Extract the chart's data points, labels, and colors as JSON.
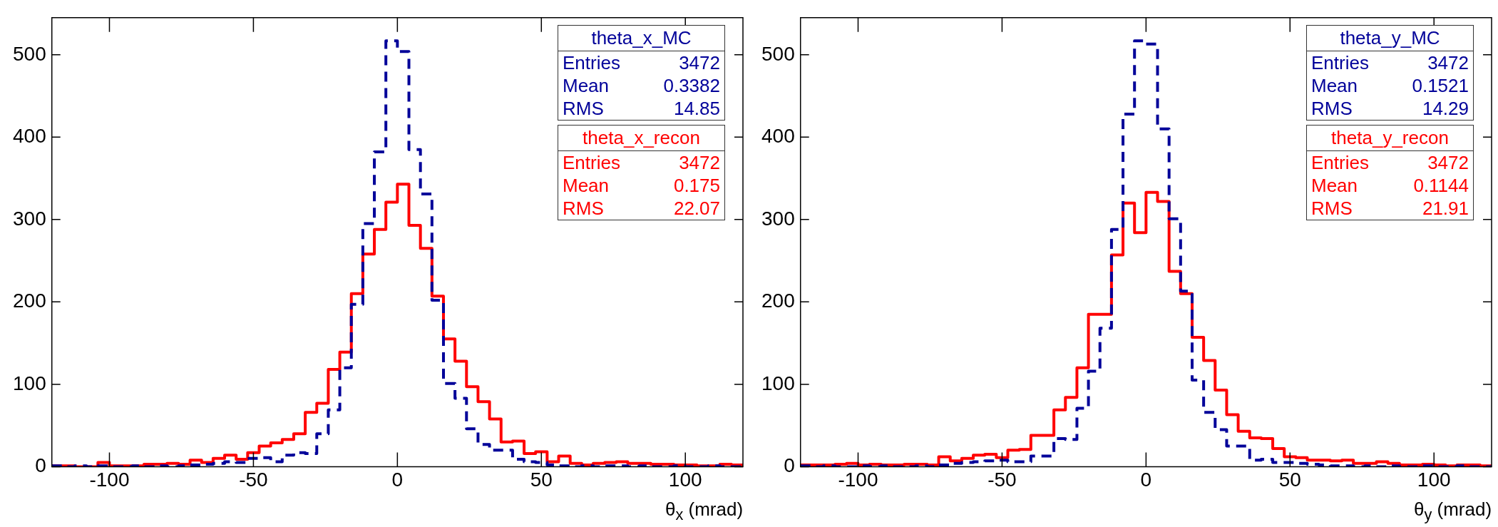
{
  "chart_data": [
    {
      "type": "histogram",
      "xlabel": "θ$_{x}$ (mrad)",
      "xlim": [
        -120,
        120
      ],
      "xticks": [
        -100,
        -50,
        0,
        50,
        100
      ],
      "ylim": [
        0,
        545
      ],
      "yticks": [
        0,
        100,
        200,
        300,
        400,
        500
      ],
      "legend": "top right",
      "bins": [
        -120,
        -116,
        -112,
        -108,
        -104,
        -100,
        -96,
        -92,
        -88,
        -84,
        -80,
        -76,
        -72,
        -68,
        -64,
        -60,
        -56,
        -52,
        -48,
        -44,
        -40,
        -36,
        -32,
        -28,
        -24,
        -20,
        -16,
        -12,
        -8,
        -4,
        0,
        4,
        8,
        12,
        16,
        20,
        24,
        28,
        32,
        36,
        40,
        44,
        48,
        52,
        56,
        60,
        64,
        68,
        72,
        76,
        80,
        84,
        88,
        92,
        96,
        100,
        104,
        108,
        112,
        116,
        120
      ],
      "series": [
        {
          "name": "theta_x_MC",
          "color": "#000099",
          "line_style": "dashed",
          "values": [
            1,
            0,
            1,
            0,
            1,
            0,
            0,
            1,
            0,
            1,
            0,
            1,
            2,
            3,
            4,
            6,
            5,
            10,
            11,
            6,
            14,
            17,
            16,
            40,
            69,
            120,
            197,
            295,
            382,
            517,
            504,
            385,
            331,
            202,
            101,
            83,
            46,
            27,
            20,
            20,
            9,
            6,
            5,
            2,
            1,
            0,
            1,
            0,
            1,
            1,
            0,
            1,
            0,
            0,
            1,
            0,
            0,
            1,
            0,
            0
          ]
        },
        {
          "name": "theta_x_recon",
          "color": "#ff0000",
          "line_style": "solid",
          "values": [
            1,
            1,
            0,
            0,
            5,
            1,
            1,
            1,
            3,
            3,
            4,
            3,
            8,
            5,
            10,
            14,
            9,
            17,
            25,
            29,
            33,
            40,
            66,
            77,
            118,
            139,
            210,
            258,
            288,
            321,
            343,
            293,
            265,
            207,
            155,
            128,
            97,
            79,
            58,
            30,
            31,
            16,
            18,
            6,
            13,
            4,
            2,
            4,
            5,
            6,
            4,
            4,
            3,
            3,
            2,
            2,
            1,
            1,
            3,
            2
          ]
        }
      ],
      "annotations": [
        "Entries 3472",
        "Mean 0.3382",
        "RMS 14.85",
        "Entries 3472",
        "Mean 0.175",
        "RMS 22.07"
      ]
    },
    {
      "type": "histogram",
      "xlabel": "θ$_{y}$ (mrad)",
      "xlim": [
        -120,
        120
      ],
      "xticks": [
        -100,
        -50,
        0,
        50,
        100
      ],
      "ylim": [
        0,
        545
      ],
      "yticks": [
        0,
        100,
        200,
        300,
        400,
        500
      ],
      "legend": "top right",
      "bins": [
        -120,
        -116,
        -112,
        -108,
        -104,
        -100,
        -96,
        -92,
        -88,
        -84,
        -80,
        -76,
        -72,
        -68,
        -64,
        -60,
        -56,
        -52,
        -48,
        -44,
        -40,
        -36,
        -32,
        -28,
        -24,
        -20,
        -16,
        -12,
        -8,
        -4,
        0,
        4,
        8,
        12,
        16,
        20,
        24,
        28,
        32,
        36,
        40,
        44,
        48,
        52,
        56,
        60,
        64,
        68,
        72,
        76,
        80,
        84,
        88,
        92,
        96,
        100,
        104,
        108,
        112,
        116,
        120
      ],
      "series": [
        {
          "name": "theta_y_MC",
          "color": "#000099",
          "line_style": "dashed",
          "values": [
            1,
            0,
            1,
            0,
            0,
            1,
            0,
            1,
            0,
            0,
            1,
            0,
            2,
            4,
            5,
            6,
            7,
            8,
            6,
            6,
            13,
            13,
            34,
            33,
            71,
            116,
            168,
            288,
            428,
            517,
            513,
            410,
            301,
            213,
            105,
            66,
            45,
            25,
            25,
            8,
            9,
            5,
            5,
            4,
            3,
            2,
            1,
            1,
            0,
            1,
            0,
            1,
            0,
            0,
            1,
            0,
            0,
            1,
            0,
            0
          ]
        },
        {
          "name": "theta_y_recon",
          "color": "#ff0000",
          "line_style": "solid",
          "values": [
            2,
            2,
            2,
            3,
            4,
            2,
            3,
            2,
            2,
            3,
            3,
            2,
            12,
            7,
            10,
            14,
            15,
            11,
            20,
            21,
            38,
            38,
            69,
            84,
            120,
            185,
            185,
            257,
            320,
            284,
            333,
            322,
            237,
            210,
            157,
            129,
            93,
            63,
            43,
            35,
            34,
            22,
            12,
            11,
            8,
            8,
            7,
            8,
            4,
            4,
            6,
            4,
            2,
            2,
            3,
            2,
            1,
            2,
            2,
            1
          ]
        }
      ],
      "annotations": [
        "Entries 3472",
        "Mean 0.1521",
        "RMS 14.29",
        "Entries 3472",
        "Mean 0.1144",
        "RMS 21.91"
      ]
    }
  ]
}
